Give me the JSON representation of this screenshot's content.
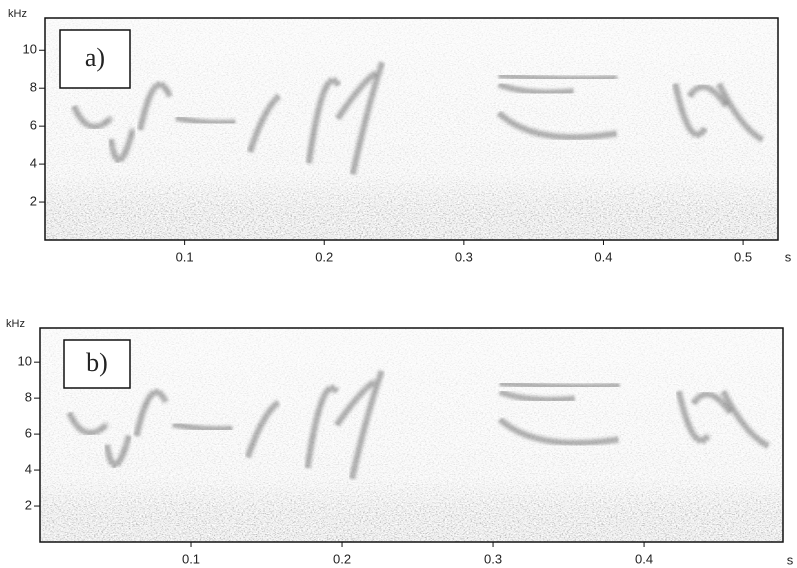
{
  "chart_data": [
    {
      "type": "spectrogram",
      "panel_label": "a)",
      "y_label": "kHz",
      "x_label": "s",
      "xlim": [
        0,
        0.525
      ],
      "xticks": [
        0.1,
        0.2,
        0.3,
        0.4,
        0.5
      ],
      "ylim": [
        0,
        11.7
      ],
      "yticks": [
        2,
        4,
        6,
        8,
        10
      ]
    },
    {
      "type": "spectrogram",
      "panel_label": "b)",
      "y_label": "kHz",
      "x_label": "s",
      "xlim": [
        0,
        0.492
      ],
      "xticks": [
        0.1,
        0.2,
        0.3,
        0.4
      ],
      "ylim": [
        0,
        11.9
      ],
      "yticks": [
        2,
        4,
        6,
        8,
        10
      ]
    }
  ]
}
